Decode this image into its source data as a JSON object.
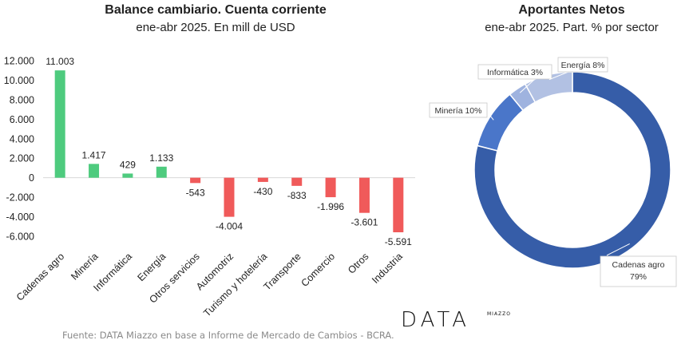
{
  "colors": {
    "positive": "#4ecb7e",
    "negative": "#f05a5a",
    "donut": [
      "#365da8",
      "#4a76c9",
      "#9fb3df",
      "#b2c1e3"
    ],
    "text": "#222222",
    "muted": "#8a8a8a"
  },
  "bar_title": "Balance cambiario. Cuenta corriente",
  "bar_subtitle": "ene-abr 2025. En mill de USD",
  "pie_title": "Aportantes Netos",
  "pie_subtitle": "ene-abr  2025. Part. % por sector",
  "footer": "Fuente: DATA Miazzo en base a Informe de Mercado de Cambios - BCRA.",
  "logo": {
    "main": "DATA",
    "sub": "MIAZZO"
  },
  "chart_data": [
    {
      "type": "bar",
      "title": "Balance cambiario. Cuenta corriente",
      "subtitle": "ene-abr 2025. En mill de USD",
      "categories": [
        "Cadenas agro",
        "Minería",
        "Informática",
        "Energía",
        "Otros servicios",
        "Automotriz",
        "Turismo y hotelería",
        "Transporte",
        "Comercio",
        "Otros",
        "Industria"
      ],
      "values": [
        11003,
        1417,
        429,
        1133,
        -543,
        -4004,
        -430,
        -833,
        -1996,
        -3601,
        -5591
      ],
      "value_labels": [
        "11.003",
        "1.417",
        "429",
        "1.133",
        "-543",
        "-4.004",
        "-430",
        "-833",
        "-1.996",
        "-3.601",
        "-5.591"
      ],
      "y_ticks": [
        12000,
        10000,
        8000,
        6000,
        4000,
        2000,
        0,
        -2000,
        -4000,
        -6000
      ],
      "y_tick_labels": [
        "12.000",
        "10.000",
        "8.000",
        "6.000",
        "4.000",
        "2.000",
        "0",
        "-2.000",
        "-4.000",
        "-6.000"
      ],
      "ylim": [
        -6000,
        12000
      ],
      "grid": false,
      "legend": "none"
    },
    {
      "type": "pie",
      "title": "Aportantes Netos",
      "subtitle": "ene-abr  2025. Part. % por sector",
      "labels": [
        "Cadenas agro",
        "Minería",
        "Informática",
        "Energía"
      ],
      "values": [
        79,
        10,
        3,
        8
      ],
      "value_labels": [
        "79%",
        "10%",
        "3%",
        "8%"
      ],
      "donut": true
    }
  ]
}
